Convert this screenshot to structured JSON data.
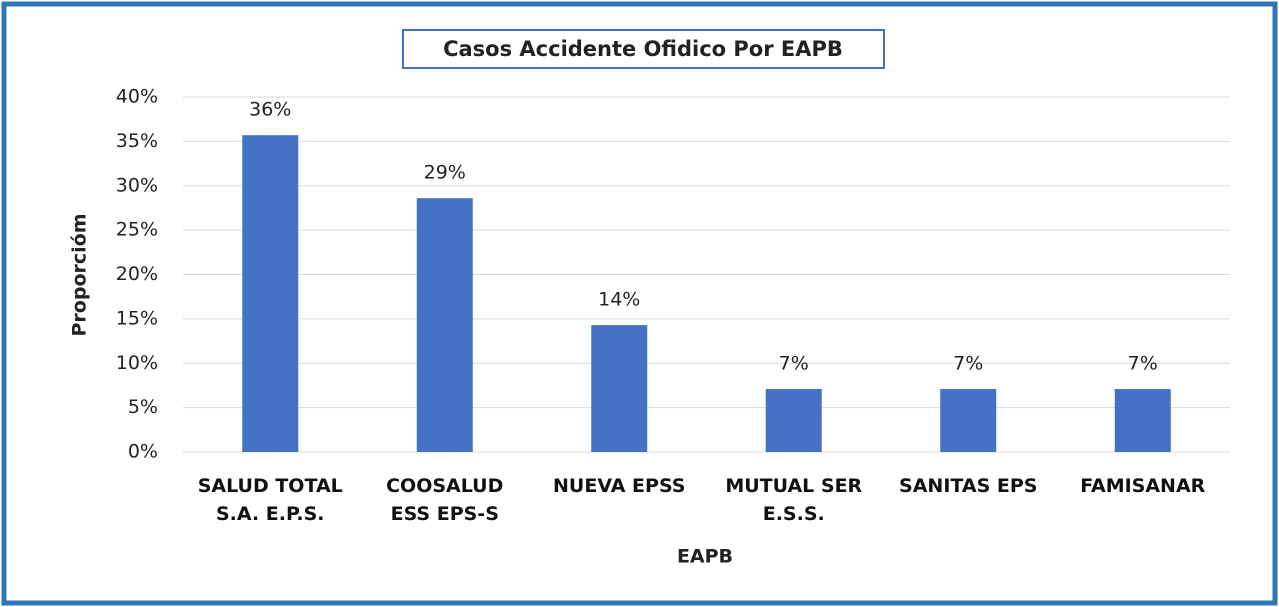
{
  "chart_data": {
    "type": "bar",
    "title": "Casos Accidente Ofidico Por EAPB",
    "x_label": "EAPB",
    "y_label": "Proporcióm",
    "categories": [
      "SALUD TOTAL\nS.A. E.P.S.",
      "COOSALUD\nESS EPS-S",
      "NUEVA EPSS",
      "MUTUAL SER\nE.S.S.",
      "SANITAS EPS",
      "FAMISANAR"
    ],
    "values": [
      35.7,
      28.6,
      14.3,
      7.1,
      7.1,
      7.1
    ],
    "value_labels": [
      "36%",
      "29%",
      "14%",
      "7%",
      "7%",
      "7%"
    ],
    "color": "#4472c4",
    "ylim": [
      0,
      40
    ],
    "yticks": [
      {
        "value": 0,
        "label": "0%"
      },
      {
        "value": 5,
        "label": "5%"
      },
      {
        "value": 10,
        "label": "10%"
      },
      {
        "value": 15,
        "label": "15%"
      },
      {
        "value": 20,
        "label": "20%"
      },
      {
        "value": 25,
        "label": "25%"
      },
      {
        "value": 30,
        "label": "30%"
      },
      {
        "value": 35,
        "label": "35%"
      },
      {
        "value": 40,
        "label": "40%"
      }
    ],
    "grid": true
  }
}
